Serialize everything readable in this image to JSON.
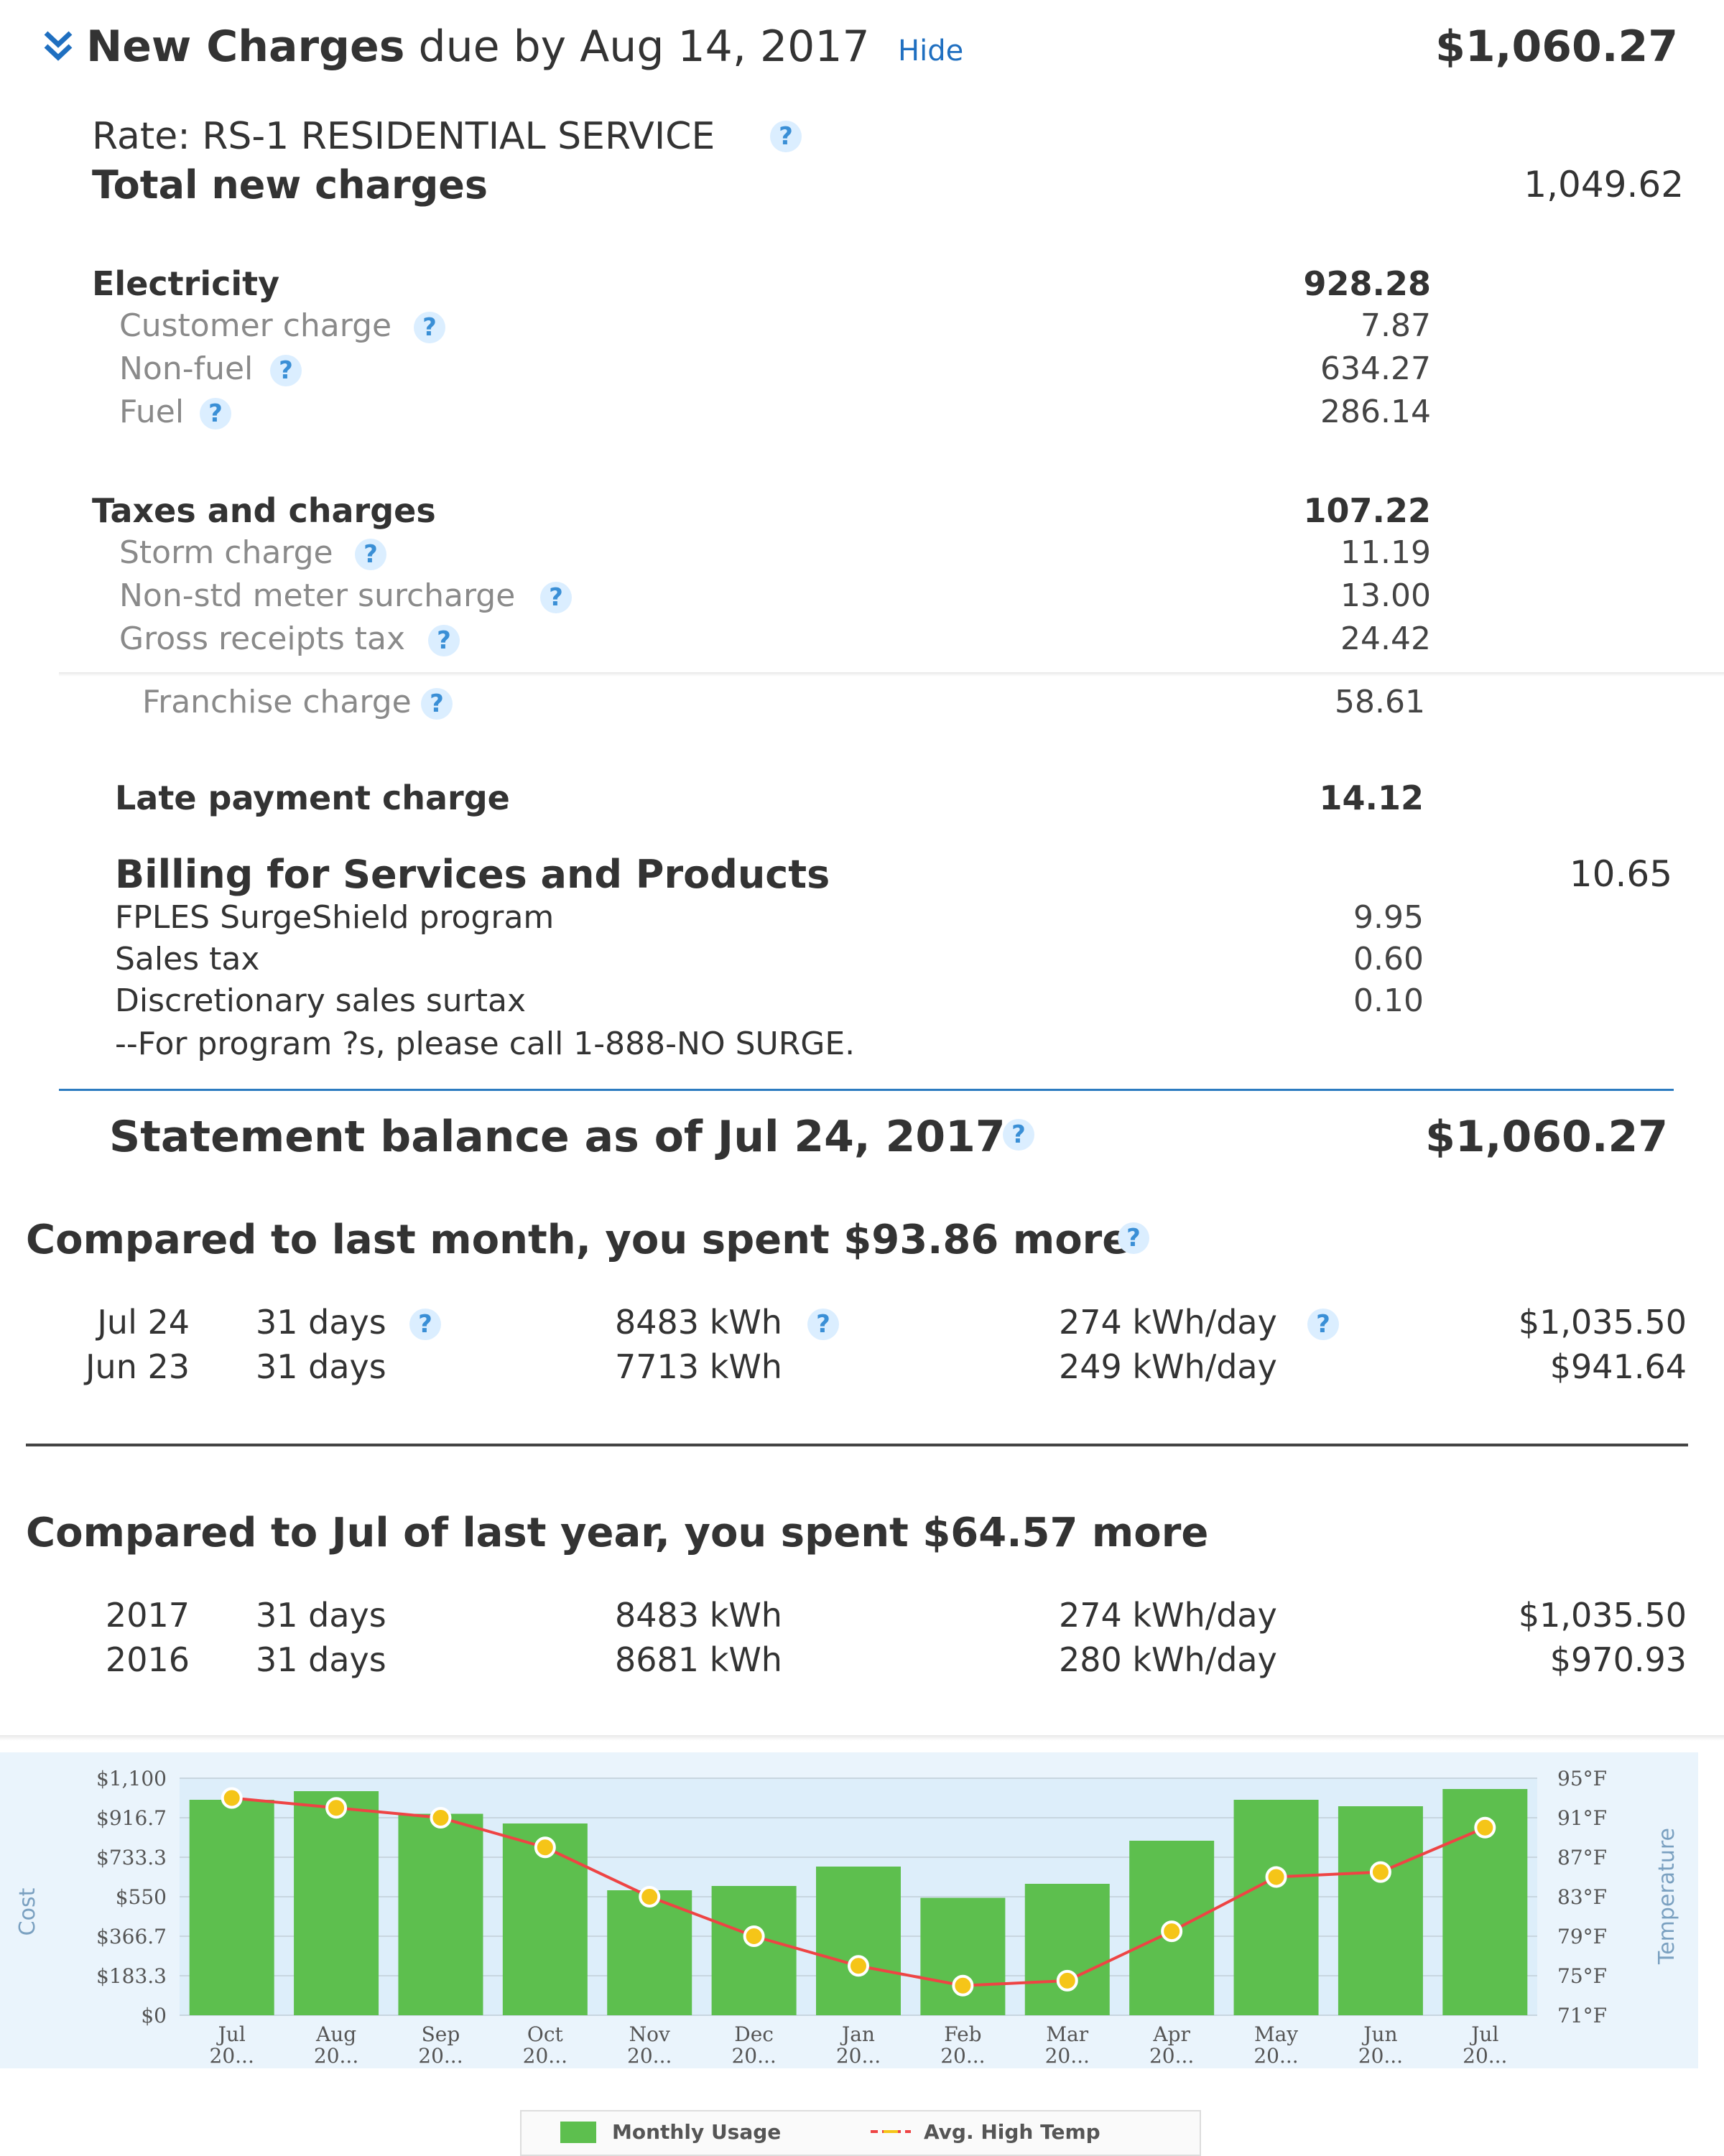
{
  "header": {
    "title_bold": "New Charges",
    "title_rest": "due by Aug 14, 2017",
    "hide_link": "Hide",
    "amount": "$1,060.27",
    "chevron_icon": "double-chevron-down-icon"
  },
  "rate": {
    "label": "Rate: RS-1 RESIDENTIAL SERVICE",
    "total_label": "Total new charges",
    "total_value": "1,049.62"
  },
  "electricity": {
    "label": "Electricity",
    "value": "928.28",
    "items": [
      {
        "label": "Customer charge",
        "value": "7.87"
      },
      {
        "label": "Non-fuel",
        "value": "634.27"
      },
      {
        "label": "Fuel",
        "value": "286.14"
      }
    ]
  },
  "taxes": {
    "label": "Taxes and charges",
    "value": "107.22",
    "items": [
      {
        "label": "Storm charge",
        "value": "11.19"
      },
      {
        "label": "Non-std meter surcharge",
        "value": "13.00"
      },
      {
        "label": "Gross receipts tax",
        "value": "24.42"
      }
    ],
    "franchise_label": "Franchise charge",
    "franchise_value": "58.61"
  },
  "late_payment": {
    "label": "Late payment charge",
    "value": "14.12"
  },
  "services": {
    "label": "Billing for Services and Products",
    "total": "10.65",
    "items": [
      {
        "label": "FPLES SurgeShield program",
        "value": "9.95"
      },
      {
        "label": "Sales tax",
        "value": "0.60"
      },
      {
        "label": "Discretionary sales surtax",
        "value": "0.10"
      }
    ],
    "note": "--For program ?s, please call 1-888-NO SURGE."
  },
  "statement": {
    "label": "Statement balance as of Jul 24, 2017",
    "value": "$1,060.27"
  },
  "compare_month": {
    "title": "Compared to last month, you spent $93.86 more",
    "rows": [
      {
        "date": "Jul 24",
        "days": "31 days",
        "kwh": "8483 kWh",
        "per_day": "274 kWh/day",
        "cost": "$1,035.50"
      },
      {
        "date": "Jun 23",
        "days": "31 days",
        "kwh": "7713 kWh",
        "per_day": "249 kWh/day",
        "cost": "$941.64"
      }
    ]
  },
  "compare_year": {
    "title": "Compared to Jul of last year, you spent $64.57 more",
    "rows": [
      {
        "date": "2017",
        "days": "31 days",
        "kwh": "8483 kWh",
        "per_day": "274 kWh/day",
        "cost": "$1,035.50"
      },
      {
        "date": "2016",
        "days": "31 days",
        "kwh": "8681 kWh",
        "per_day": "280 kWh/day",
        "cost": "$970.93"
      }
    ]
  },
  "help_icon": "question-mark-icon",
  "chart_data": {
    "type": "bar",
    "categories": [
      "Jul 20...",
      "Aug 20...",
      "Sep 20...",
      "Oct 20...",
      "Nov 20...",
      "Dec 20...",
      "Jan 20...",
      "Feb 20...",
      "Mar 20...",
      "Apr 20...",
      "May 20...",
      "Jun 20...",
      "Jul 20..."
    ],
    "series": [
      {
        "name": "Monthly Usage",
        "kind": "bar",
        "axis": "left",
        "values": [
          1000,
          1040,
          935,
          890,
          580,
          600,
          690,
          545,
          610,
          810,
          1000,
          970,
          1050
        ]
      },
      {
        "name": "Avg. High Temp",
        "kind": "line",
        "axis": "right",
        "values": [
          93,
          92,
          91,
          88,
          83,
          79,
          76,
          74,
          74.5,
          79.5,
          85,
          85.5,
          90
        ]
      }
    ],
    "ylabel": "Cost",
    "y2label": "Temperature",
    "y_ticks": [
      "$1,100",
      "$916.7",
      "$733.3",
      "$550",
      "$366.7",
      "$183.3",
      "$0"
    ],
    "y2_ticks": [
      "95°F",
      "91°F",
      "87°F",
      "83°F",
      "79°F",
      "75°F",
      "71°F"
    ],
    "ylim": [
      0,
      1100
    ],
    "y2lim": [
      71,
      95
    ],
    "legend_position": "bottom",
    "bar_color": "#5dbf4e",
    "line_color": "#ee4444",
    "marker_color": "#f5c518"
  }
}
